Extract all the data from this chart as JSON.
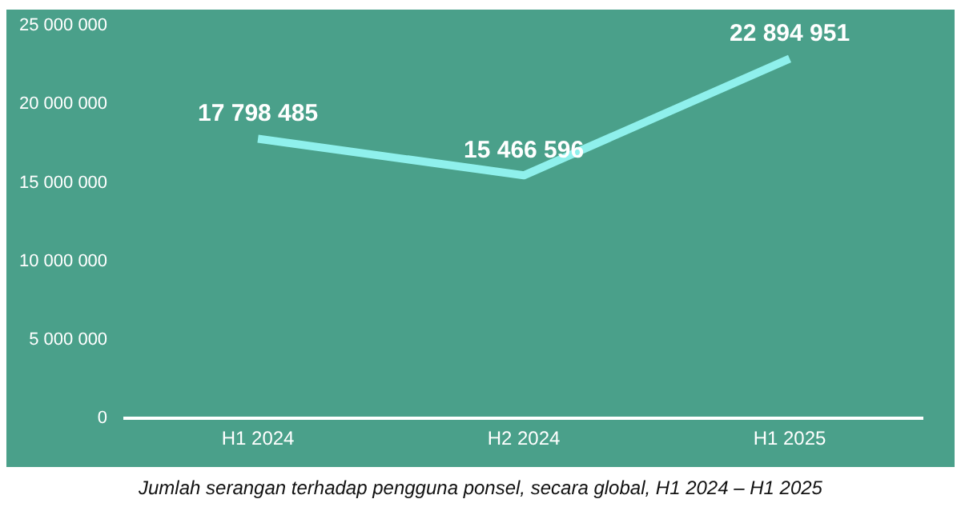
{
  "chart_data": {
    "type": "line",
    "categories": [
      "H1 2024",
      "H2 2024",
      "H1 2025"
    ],
    "series": [
      {
        "color": "#8ff0ec",
        "values": [
          17798485,
          15466596,
          22894951
        ]
      }
    ],
    "ylim": [
      0,
      25000000
    ],
    "yticks": [
      {
        "value": 0,
        "label": "0"
      },
      {
        "value": 5000000,
        "label": "5 000 000"
      },
      {
        "value": 10000000,
        "label": "10 000 000"
      },
      {
        "value": 15000000,
        "label": "15 000 000"
      },
      {
        "value": 20000000,
        "label": "20 000 000"
      },
      {
        "value": 25000000,
        "label": "25 000 000"
      }
    ],
    "grid": false,
    "legend": false,
    "marker": "none",
    "line_style": "solid",
    "data_labels": true,
    "annotations": [
      "Jumlah serangan terhadap pengguna ponsel, secara global, H1 2024 – H1 2025"
    ]
  }
}
